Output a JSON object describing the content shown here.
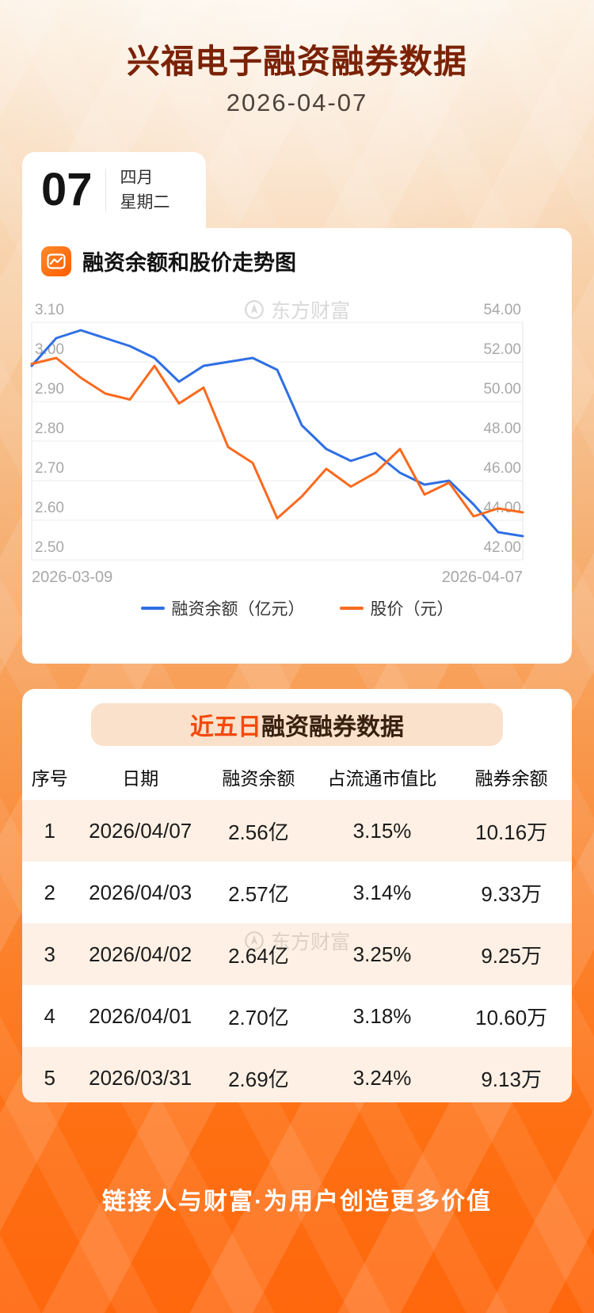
{
  "header": {
    "title": "兴福电子融资融券数据",
    "date": "2026-04-07"
  },
  "date_card": {
    "day": "07",
    "month": "四月",
    "weekday": "星期二"
  },
  "chart_section": {
    "title": "融资余额和股价走势图",
    "watermark": "东方财富"
  },
  "chart_data": {
    "type": "line",
    "x_range": [
      "2026-03-09",
      "2026-04-07"
    ],
    "left_axis": {
      "name": "融资余额（亿元）",
      "min": 2.5,
      "max": 3.1,
      "ticks": [
        "3.10",
        "3.00",
        "2.90",
        "2.80",
        "2.70",
        "2.60",
        "2.50"
      ]
    },
    "right_axis": {
      "name": "股价（元）",
      "min": 42.0,
      "max": 54.0,
      "ticks": [
        "54.00",
        "52.00",
        "50.00",
        "48.00",
        "46.00",
        "44.00",
        "42.00"
      ]
    },
    "series": [
      {
        "name": "融资余额（亿元）",
        "axis": "left",
        "color": "#2f6fe4",
        "values": [
          2.99,
          3.06,
          3.08,
          3.06,
          3.04,
          3.01,
          2.95,
          2.99,
          3.0,
          3.01,
          2.98,
          2.84,
          2.78,
          2.75,
          2.77,
          2.72,
          2.69,
          2.7,
          2.64,
          2.57,
          2.56
        ]
      },
      {
        "name": "股价（元）",
        "axis": "right",
        "color": "#fa6a1e",
        "values": [
          51.9,
          52.2,
          51.2,
          50.4,
          50.1,
          51.8,
          49.9,
          50.7,
          47.7,
          46.9,
          44.1,
          45.2,
          46.6,
          45.7,
          46.4,
          47.6,
          45.3,
          45.9,
          44.2,
          44.6,
          44.4
        ]
      }
    ],
    "grid": true,
    "legend_position": "bottom"
  },
  "table_section": {
    "title_highlight": "近五日",
    "title_rest": "融资融券数据",
    "watermark": "东方财富",
    "columns": [
      "序号",
      "日期",
      "融资余额",
      "占流通市值比",
      "融券余额"
    ],
    "rows": [
      [
        "1",
        "2026/04/07",
        "2.56亿",
        "3.15%",
        "10.16万"
      ],
      [
        "2",
        "2026/04/03",
        "2.57亿",
        "3.14%",
        "9.33万"
      ],
      [
        "3",
        "2026/04/02",
        "2.64亿",
        "3.25%",
        "9.25万"
      ],
      [
        "4",
        "2026/04/01",
        "2.70亿",
        "3.18%",
        "10.60万"
      ],
      [
        "5",
        "2026/03/31",
        "2.69亿",
        "3.24%",
        "9.13万"
      ]
    ]
  },
  "footer": {
    "slogan": "链接人与财富·为用户创造更多价值"
  },
  "icons": {
    "chart_title_icon": "line-chart-icon",
    "watermark_icon": "eastmoney-logo-icon"
  },
  "colors": {
    "page_top": "#fcefdf",
    "page_bottom": "#ff670d",
    "header_title": "#7b2206",
    "table_title_highlight": "#f4490b",
    "banner_bg": "#fae1cb",
    "alt_row_bg": "#fbeade",
    "line_blue": "#2f6fe4",
    "line_orange": "#fa6a1e"
  }
}
